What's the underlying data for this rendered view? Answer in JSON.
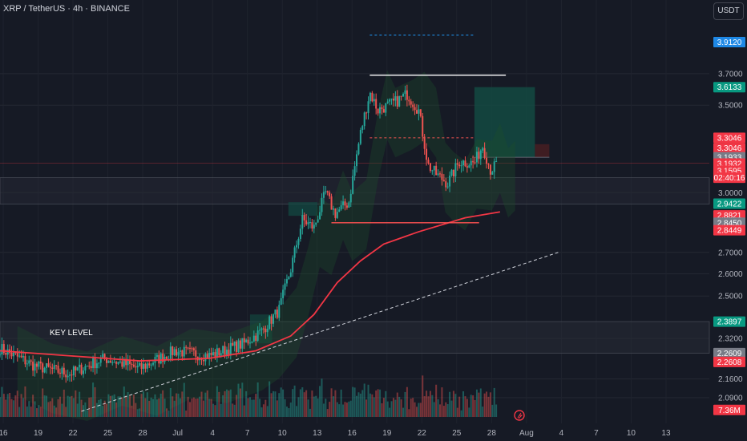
{
  "header": {
    "title": "XRP / TetherUS · 4h · BINANCE",
    "currency": "USDT"
  },
  "colors": {
    "background": "#161a25",
    "up": "#26a69a",
    "down": "#ef5350",
    "ma": "#f23645",
    "band_fill": "#1e4d2b",
    "target_zone": "#134c43",
    "stop_zone": "#4a1e22",
    "level_line": "#ff5252",
    "trendline": "#d1d4dc"
  },
  "chart_data": {
    "type": "candlestick",
    "symbol": "XRP / TetherUS",
    "timeframe": "4h",
    "exchange": "BINANCE",
    "x_ticks": [
      "16",
      "19",
      "22",
      "25",
      "28",
      "Jul",
      "4",
      "7",
      "10",
      "13",
      "16",
      "19",
      "22",
      "25",
      "28",
      "Aug",
      "4",
      "7",
      "10",
      "13"
    ],
    "y_ticks": [
      "3.7000",
      "3.5000",
      "3.0000",
      "2.7000",
      "2.6000",
      "2.5000",
      "2.3200",
      "2.1600",
      "2.0900"
    ],
    "y_scale": "log",
    "ylim": [
      2.02,
      4.05
    ],
    "anchors": [
      {
        "d": 0,
        "v": 2.28
      },
      {
        "d": 3,
        "v": 2.21
      },
      {
        "d": 6,
        "v": 2.18
      },
      {
        "d": 9,
        "v": 2.24
      },
      {
        "d": 12,
        "v": 2.2
      },
      {
        "d": 15,
        "v": 2.27
      },
      {
        "d": 18,
        "v": 2.25
      },
      {
        "d": 21,
        "v": 2.3
      },
      {
        "d": 22.5,
        "v": 2.35
      },
      {
        "d": 24,
        "v": 2.44
      },
      {
        "d": 25,
        "v": 2.62
      },
      {
        "d": 26,
        "v": 2.86
      },
      {
        "d": 27,
        "v": 2.82
      },
      {
        "d": 28,
        "v": 3.0
      },
      {
        "d": 28.8,
        "v": 2.89
      },
      {
        "d": 30,
        "v": 2.95
      },
      {
        "d": 31,
        "v": 3.33
      },
      {
        "d": 31.8,
        "v": 3.58
      },
      {
        "d": 32.5,
        "v": 3.47
      },
      {
        "d": 34,
        "v": 3.52
      },
      {
        "d": 35,
        "v": 3.57
      },
      {
        "d": 36,
        "v": 3.47
      },
      {
        "d": 36.8,
        "v": 3.15
      },
      {
        "d": 37.5,
        "v": 3.1
      },
      {
        "d": 38.5,
        "v": 3.05
      },
      {
        "d": 39.5,
        "v": 3.17
      },
      {
        "d": 40.8,
        "v": 3.16
      },
      {
        "d": 41.5,
        "v": 3.26
      },
      {
        "d": 42.2,
        "v": 3.12
      },
      {
        "d": 42.8,
        "v": 3.16
      }
    ],
    "moving_average": [
      {
        "d": 0,
        "v": 2.27
      },
      {
        "d": 6,
        "v": 2.25
      },
      {
        "d": 12,
        "v": 2.23
      },
      {
        "d": 18,
        "v": 2.24
      },
      {
        "d": 22,
        "v": 2.27
      },
      {
        "d": 25,
        "v": 2.33
      },
      {
        "d": 27,
        "v": 2.42
      },
      {
        "d": 29,
        "v": 2.56
      },
      {
        "d": 31,
        "v": 2.66
      },
      {
        "d": 33,
        "v": 2.74
      },
      {
        "d": 36,
        "v": 2.8
      },
      {
        "d": 40,
        "v": 2.87
      },
      {
        "d": 43,
        "v": 2.9
      }
    ],
    "trendline": {
      "start": {
        "d": 7,
        "v": 2.04
      },
      "end": {
        "d": 48,
        "v": 2.7
      }
    },
    "levels": [
      {
        "name": "top-line",
        "from_d": 31.8,
        "to_d": 43.5,
        "v": 3.69,
        "color": "#ffffff"
      },
      {
        "name": "upper-dashed",
        "from_d": 31.8,
        "to_d": 40.8,
        "v": 3.96,
        "color": "#2196f3",
        "dash": true
      },
      {
        "name": "mid-dashed",
        "from_d": 31.8,
        "to_d": 40.8,
        "v": 3.3046,
        "color": "#ef5350",
        "dash": true
      },
      {
        "name": "support-line",
        "from_d": 28.5,
        "to_d": 41.2,
        "v": 2.8449,
        "color": "#ff5252"
      }
    ],
    "key_level_zone": {
      "label": "KEY LEVEL",
      "low": 2.26,
      "high": 2.39
    },
    "resistance_zone": {
      "low": 2.94,
      "high": 3.08
    },
    "position": {
      "entry": 3.1932,
      "target": 3.6133,
      "stop": 3.3046,
      "from_d": 40.8,
      "to_d": 46
    },
    "price_badges": [
      {
        "label": "3.9120",
        "v": 3.912,
        "color": "#1e88e5"
      },
      {
        "label": "3.6133",
        "v": 3.6133,
        "color": "#089981"
      },
      {
        "label": "3.3046",
        "v": 3.3046,
        "color": "#f23645"
      },
      {
        "label": "3.3046",
        "v": 3.245,
        "color": "#f23645"
      },
      {
        "label": "3.1933",
        "v": 3.1933,
        "color": "#787b86"
      },
      {
        "label": "3.1932",
        "v": 3.158,
        "color": "#f23645"
      },
      {
        "label": "3.1595",
        "v": 3.118,
        "color": "#f23645"
      },
      {
        "label": "02:40:16",
        "v": 3.08,
        "color": "#f23645"
      },
      {
        "label": "2.9422",
        "v": 2.9422,
        "color": "#089981"
      },
      {
        "label": "2.8821",
        "v": 2.8821,
        "color": "#f23645"
      },
      {
        "label": "2.8450",
        "v": 2.845,
        "color": "#787b86"
      },
      {
        "label": "2.8449",
        "v": 2.8075,
        "color": "#f23645"
      },
      {
        "label": "2.3897",
        "v": 2.3897,
        "color": "#089981"
      },
      {
        "label": "2.2609",
        "v": 2.2609,
        "color": "#787b86"
      },
      {
        "label": "2.2608",
        "v": 2.2258,
        "color": "#f23645"
      },
      {
        "label": "7.36M",
        "v": 2.045,
        "color": "#f23645"
      }
    ]
  }
}
